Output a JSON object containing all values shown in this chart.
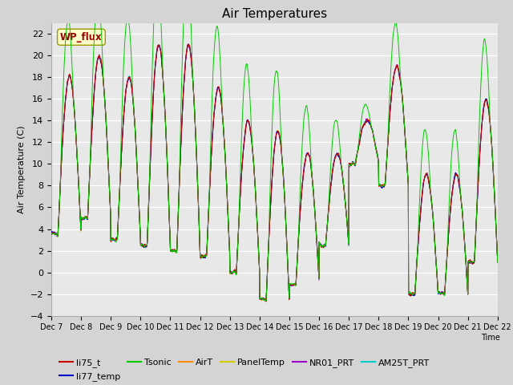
{
  "title": "Air Temperatures",
  "ylabel": "Air Temperature (C)",
  "xlabel": "Time",
  "ylim": [
    -4,
    23
  ],
  "yticks": [
    -4,
    -2,
    0,
    2,
    4,
    6,
    8,
    10,
    12,
    14,
    16,
    18,
    20,
    22
  ],
  "plot_bg_color": "#e8e8e8",
  "fig_bg_color": "#d4d4d4",
  "series_colors": {
    "li75_t": "#cc0000",
    "li77_temp": "#0000cc",
    "Tsonic": "#00cc00",
    "AirT": "#ff8800",
    "PanelTemp": "#cccc00",
    "NR01_PRT": "#9900cc",
    "AM25T_PRT": "#00cccc"
  },
  "legend_label": "WP_flux",
  "legend_label_color": "#990000",
  "legend_box_facecolor": "#ffffcc",
  "legend_box_edgecolor": "#999900",
  "title_fontsize": 11,
  "axis_label_fontsize": 8,
  "tick_fontsize": 8,
  "n_points": 2160,
  "n_days": 15,
  "start_day": 7
}
